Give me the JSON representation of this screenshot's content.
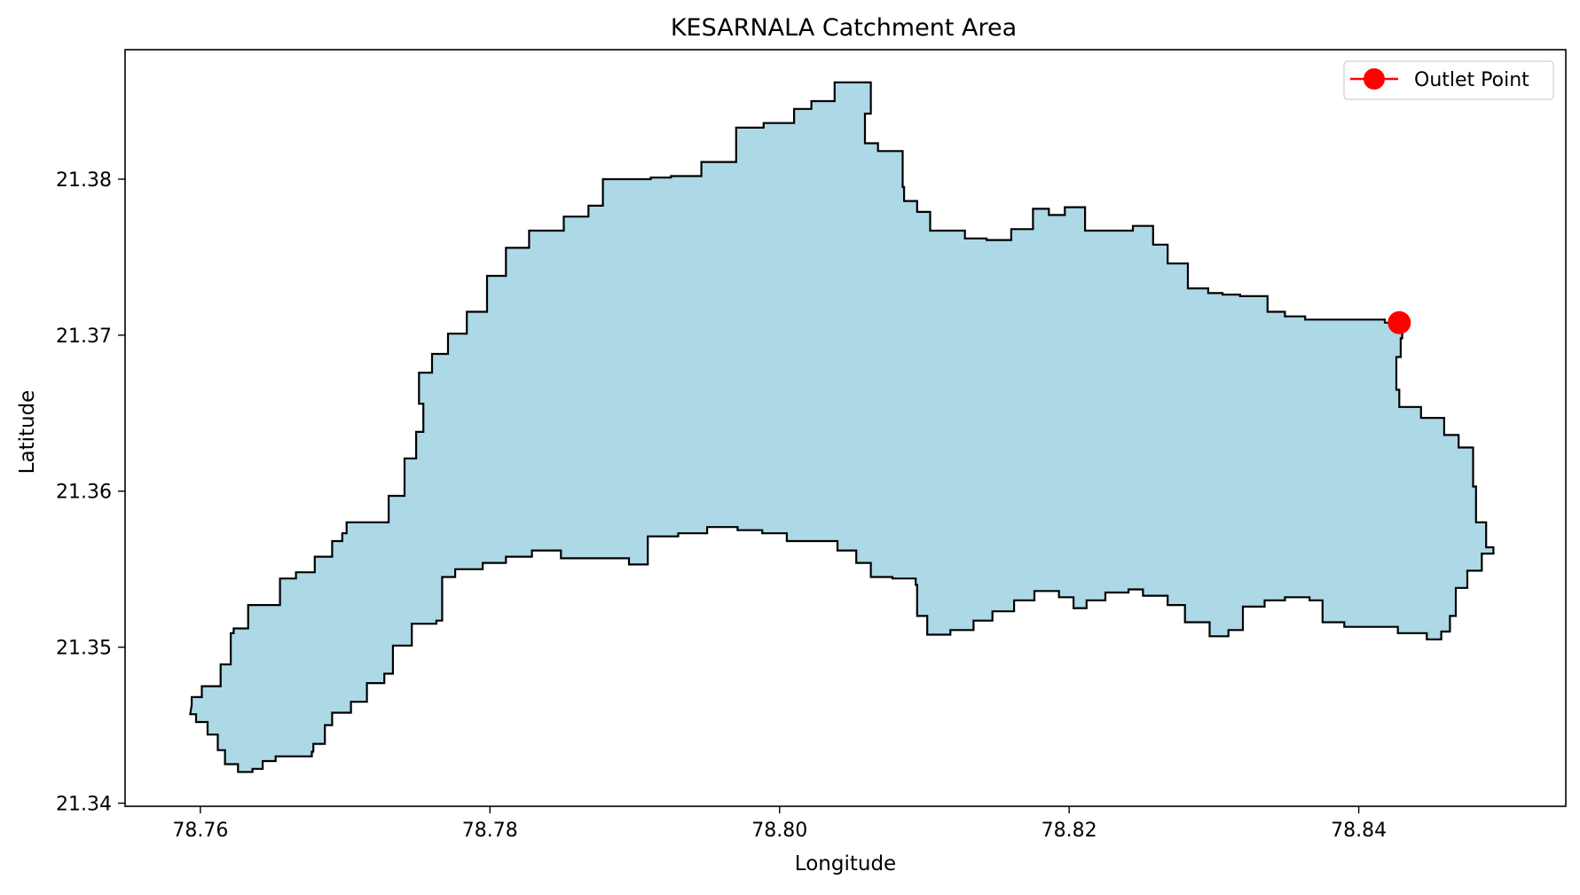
{
  "chart_data": {
    "type": "area",
    "title": "KESARNALA Catchment Area",
    "xlabel": "Longitude",
    "ylabel": "Latitude",
    "xlim": [
      78.7548,
      78.8543
    ],
    "ylim": [
      21.3398,
      21.3883
    ],
    "xticks": [
      {
        "value": 78.76,
        "label": "78.76"
      },
      {
        "value": 78.78,
        "label": "78.78"
      },
      {
        "value": 78.8,
        "label": "78.80"
      },
      {
        "value": 78.82,
        "label": "78.82"
      },
      {
        "value": 78.84,
        "label": "78.84"
      }
    ],
    "yticks": [
      {
        "value": 21.34,
        "label": "21.34"
      },
      {
        "value": 21.35,
        "label": "21.35"
      },
      {
        "value": 21.36,
        "label": "21.36"
      },
      {
        "value": 21.37,
        "label": "21.37"
      },
      {
        "value": 21.38,
        "label": "21.38"
      }
    ],
    "grid": false,
    "legend_position": "top-right",
    "legend": [
      {
        "label": "Outlet Point",
        "color": "#ff0000",
        "marker": "circle"
      }
    ],
    "catchment": {
      "fill_color": "#add8e6",
      "edge_color": "#000000",
      "boundary": [
        [
          78.7594,
          21.3463
        ],
        [
          78.7601,
          21.3468
        ],
        [
          78.7604,
          21.3475
        ],
        [
          78.7614,
          21.3475
        ],
        [
          78.7621,
          21.3489
        ],
        [
          78.7623,
          21.3509
        ],
        [
          78.7633,
          21.3512
        ],
        [
          78.7655,
          21.3527
        ],
        [
          78.7666,
          21.3544
        ],
        [
          78.7679,
          21.3548
        ],
        [
          78.7691,
          21.3558
        ],
        [
          78.7698,
          21.3568
        ],
        [
          78.7701,
          21.3573
        ],
        [
          78.7716,
          21.358
        ],
        [
          78.773,
          21.358
        ],
        [
          78.7741,
          21.3597
        ],
        [
          78.7749,
          21.3621
        ],
        [
          78.7754,
          21.3638
        ],
        [
          78.7751,
          21.3656
        ],
        [
          78.776,
          21.3676
        ],
        [
          78.7771,
          21.3688
        ],
        [
          78.7784,
          21.3701
        ],
        [
          78.7798,
          21.3715
        ],
        [
          78.7811,
          21.3738
        ],
        [
          78.7827,
          21.3756
        ],
        [
          78.7851,
          21.3767
        ],
        [
          78.7868,
          21.3776
        ],
        [
          78.7878,
          21.3783
        ],
        [
          78.7911,
          21.38
        ],
        [
          78.7925,
          21.3801
        ],
        [
          78.7946,
          21.3802
        ],
        [
          78.797,
          21.3811
        ],
        [
          78.7989,
          21.3833
        ],
        [
          78.801,
          21.3836
        ],
        [
          78.8022,
          21.3845
        ],
        [
          78.8038,
          21.385
        ],
        [
          78.8063,
          21.3862
        ],
        [
          78.8059,
          21.3842
        ],
        [
          78.8068,
          21.3823
        ],
        [
          78.8085,
          21.3818
        ],
        [
          78.8086,
          21.3795
        ],
        [
          78.8095,
          21.3786
        ],
        [
          78.8104,
          21.3779
        ],
        [
          78.8128,
          21.3767
        ],
        [
          78.8143,
          21.3762
        ],
        [
          78.816,
          21.3761
        ],
        [
          78.8175,
          21.3768
        ],
        [
          78.8186,
          21.3781
        ],
        [
          78.8197,
          21.3777
        ],
        [
          78.8211,
          21.3782
        ],
        [
          78.8225,
          21.3767
        ],
        [
          78.8244,
          21.3767
        ],
        [
          78.8258,
          21.377
        ],
        [
          78.8268,
          21.3758
        ],
        [
          78.8282,
          21.3746
        ],
        [
          78.8296,
          21.373
        ],
        [
          78.8306,
          21.3727
        ],
        [
          78.8318,
          21.3726
        ],
        [
          78.8337,
          21.3725
        ],
        [
          78.8349,
          21.3715
        ],
        [
          78.8363,
          21.3712
        ],
        [
          78.8379,
          21.371
        ],
        [
          78.84,
          21.371
        ],
        [
          78.8418,
          21.371
        ],
        [
          78.843,
          21.3708
        ],
        [
          78.8429,
          21.3698
        ],
        [
          78.8426,
          21.3686
        ],
        [
          78.8428,
          21.3665
        ],
        [
          78.8443,
          21.3654
        ],
        [
          78.8459,
          21.3647
        ],
        [
          78.8469,
          21.3636
        ],
        [
          78.8479,
          21.3628
        ],
        [
          78.8481,
          21.3603
        ],
        [
          78.8488,
          21.358
        ],
        [
          78.8493,
          21.3564
        ],
        [
          78.8485,
          21.356
        ],
        [
          78.8475,
          21.3549
        ],
        [
          78.8467,
          21.3538
        ],
        [
          78.8463,
          21.352
        ],
        [
          78.8457,
          21.351
        ],
        [
          78.8447,
          21.3505
        ],
        [
          78.8427,
          21.3509
        ],
        [
          78.8405,
          21.3513
        ],
        [
          78.839,
          21.3513
        ],
        [
          78.8375,
          21.3516
        ],
        [
          78.8366,
          21.353
        ],
        [
          78.8349,
          21.3532
        ],
        [
          78.8335,
          21.353
        ],
        [
          78.832,
          21.3526
        ],
        [
          78.831,
          21.3511
        ],
        [
          78.8297,
          21.3507
        ],
        [
          78.828,
          21.3516
        ],
        [
          78.8268,
          21.3527
        ],
        [
          78.8251,
          21.3533
        ],
        [
          78.8241,
          21.3537
        ],
        [
          78.8225,
          21.3535
        ],
        [
          78.8212,
          21.353
        ],
        [
          78.8203,
          21.3525
        ],
        [
          78.8193,
          21.3532
        ],
        [
          78.8176,
          21.3536
        ],
        [
          78.8162,
          21.353
        ],
        [
          78.8147,
          21.3523
        ],
        [
          78.8134,
          21.3517
        ],
        [
          78.8118,
          21.3511
        ],
        [
          78.8102,
          21.3508
        ],
        [
          78.8095,
          21.352
        ],
        [
          78.8094,
          21.354
        ],
        [
          78.8078,
          21.3544
        ],
        [
          78.8063,
          21.3545
        ],
        [
          78.8053,
          21.3554
        ],
        [
          78.804,
          21.3562
        ],
        [
          78.802,
          21.3568
        ],
        [
          78.8005,
          21.3568
        ],
        [
          78.7988,
          21.3573
        ],
        [
          78.7971,
          21.3575
        ],
        [
          78.795,
          21.3577
        ],
        [
          78.793,
          21.3573
        ],
        [
          78.7909,
          21.3571
        ],
        [
          78.7896,
          21.3553
        ],
        [
          78.7873,
          21.3557
        ],
        [
          78.7849,
          21.3557
        ],
        [
          78.7829,
          21.3562
        ],
        [
          78.7811,
          21.3558
        ],
        [
          78.7795,
          21.3554
        ],
        [
          78.7776,
          21.355
        ],
        [
          78.7767,
          21.3545
        ],
        [
          78.7763,
          21.3517
        ],
        [
          78.7746,
          21.3515
        ],
        [
          78.7733,
          21.3501
        ],
        [
          78.7727,
          21.3483
        ],
        [
          78.7715,
          21.3477
        ],
        [
          78.7704,
          21.3465
        ],
        [
          78.7691,
          21.3458
        ],
        [
          78.7686,
          21.345
        ],
        [
          78.7678,
          21.3438
        ],
        [
          78.7677,
          21.3433
        ],
        [
          78.7661,
          21.343
        ],
        [
          78.7652,
          21.343
        ],
        [
          78.7643,
          21.3427
        ],
        [
          78.7636,
          21.3422
        ],
        [
          78.7626,
          21.342
        ],
        [
          78.7617,
          21.3425
        ],
        [
          78.7612,
          21.3434
        ],
        [
          78.7605,
          21.3444
        ],
        [
          78.7597,
          21.3452
        ],
        [
          78.7593,
          21.3457
        ]
      ]
    },
    "outlet_point": {
      "name": "Outlet Point",
      "lon": 78.8428,
      "lat": 21.3708,
      "color": "#ff0000"
    }
  }
}
